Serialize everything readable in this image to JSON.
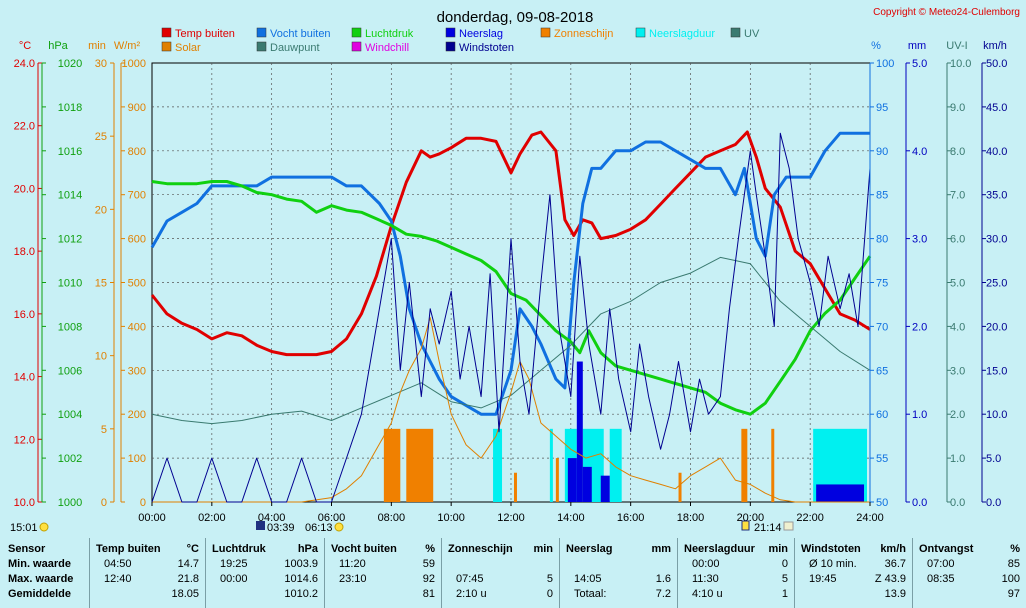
{
  "title": "donderdag, 09-08-2018",
  "copyright": "Copyright © Meteo24-Culemborg",
  "legend": [
    {
      "label": "Temp buiten",
      "color": "#e00000"
    },
    {
      "label": "Solar",
      "color": "#e08000"
    },
    {
      "label": "Vocht buiten",
      "color": "#1070e0"
    },
    {
      "label": "Dauwpunt",
      "color": "#3a7a70"
    },
    {
      "label": "Luchtdruk",
      "color": "#10d010"
    },
    {
      "label": "Windchill",
      "color": "#e000e0"
    },
    {
      "label": "Neerslag",
      "color": "#0000e0"
    },
    {
      "label": "Windstoten",
      "color": "#000090"
    },
    {
      "label": "Zonneschijn",
      "color": "#f08000"
    },
    {
      "label": "Neerslagduur",
      "color": "#00f0f0"
    },
    {
      "label": "UV",
      "color": "#3a7a70"
    }
  ],
  "axes": {
    "temp": {
      "unit": "°C",
      "ticks": [
        "24.0",
        "22.0",
        "20.0",
        "18.0",
        "16.0",
        "14.0",
        "12.0",
        "10.0"
      ],
      "color": "#e00000"
    },
    "press": {
      "unit": "hPa",
      "ticks": [
        "1020",
        "1018",
        "1016",
        "1014",
        "1012",
        "1010",
        "1008",
        "1006",
        "1004",
        "1002",
        "1000"
      ],
      "color": "#10a010"
    },
    "min": {
      "unit": "min",
      "ticks": [
        "30",
        "25",
        "20",
        "15",
        "10",
        "5",
        "0"
      ],
      "color": "#e08000"
    },
    "solar": {
      "unit": "W/m²",
      "ticks": [
        "1000",
        "900",
        "800",
        "700",
        "600",
        "500",
        "400",
        "300",
        "200",
        "100",
        "0"
      ],
      "color": "#e08000"
    },
    "hum": {
      "unit": "%",
      "ticks": [
        "100",
        "95",
        "90",
        "85",
        "80",
        "75",
        "70",
        "65",
        "60",
        "55",
        "50"
      ],
      "color": "#1070e0"
    },
    "rain": {
      "unit": "mm",
      "ticks": [
        "5.0",
        "4.0",
        "3.0",
        "2.0",
        "1.0",
        "0.0"
      ],
      "color": "#0000c0"
    },
    "uv": {
      "unit": "UV-I",
      "ticks": [
        "10.0",
        "9.0",
        "8.0",
        "7.0",
        "6.0",
        "5.0",
        "4.0",
        "3.0",
        "2.0",
        "1.0",
        "0.0"
      ],
      "color": "#3a7a70"
    },
    "wind": {
      "unit": "km/h",
      "ticks": [
        "50.0",
        "45.0",
        "40.0",
        "35.0",
        "30.0",
        "25.0",
        "20.0",
        "15.0",
        "10.0",
        "5.0",
        "0.0"
      ],
      "color": "#000090"
    }
  },
  "x_ticks": [
    "00:00",
    "02:00",
    "04:00",
    "06:00",
    "08:00",
    "10:00",
    "12:00",
    "14:00",
    "16:00",
    "18:00",
    "20:00",
    "22:00",
    "24:00"
  ],
  "markers": {
    "left_time": "15:01",
    "sunrise": "03:39",
    "sunrise2": "06:13",
    "sunset": "21:14"
  },
  "chart_data": {
    "type": "line",
    "title": "donderdag, 09-08-2018",
    "x_unit": "hours",
    "xlim": [
      0,
      24
    ],
    "series": [
      {
        "name": "Temp buiten",
        "axis": "temp",
        "ylim": [
          10,
          24
        ],
        "x": [
          0,
          0.5,
          1,
          1.5,
          2,
          2.5,
          3,
          3.5,
          4,
          4.5,
          5,
          5.5,
          6,
          6.5,
          7,
          7.5,
          8,
          8.5,
          9,
          9.3,
          9.6,
          10,
          10.5,
          11,
          11.5,
          12,
          12.3,
          12.7,
          13,
          13.5,
          13.8,
          14.1,
          14.4,
          14.7,
          15,
          15.5,
          16,
          16.5,
          17,
          17.5,
          18,
          18.5,
          19,
          19.5,
          19.9,
          20.2,
          20.5,
          21,
          21.5,
          22,
          22.5,
          23,
          23.5,
          24
        ],
        "y": [
          16.6,
          16.0,
          15.7,
          15.5,
          15.2,
          15.4,
          15.3,
          15.0,
          14.8,
          14.7,
          14.7,
          14.7,
          14.8,
          15.2,
          16.0,
          17.2,
          18.8,
          20.2,
          21.2,
          21.0,
          21.1,
          21.3,
          21.6,
          21.6,
          21.5,
          20.5,
          21.1,
          21.7,
          21.8,
          21.2,
          19.0,
          18.5,
          19.0,
          18.9,
          18.4,
          18.5,
          18.7,
          19.0,
          19.5,
          20.0,
          20.5,
          21.0,
          21.2,
          21.4,
          21.8,
          21.0,
          20.0,
          19.4,
          18.0,
          17.6,
          16.8,
          16.0,
          15.8,
          15.5
        ]
      },
      {
        "name": "Vocht buiten",
        "axis": "hum",
        "ylim": [
          50,
          100
        ],
        "x": [
          0,
          0.5,
          1,
          1.5,
          2,
          2.5,
          3,
          3.5,
          4,
          4.5,
          5,
          5.5,
          6,
          6.5,
          7,
          7.3,
          7.6,
          8,
          8.3,
          8.6,
          9,
          9.3,
          9.6,
          10,
          10.5,
          11,
          11.5,
          12,
          12.3,
          12.7,
          13,
          13.5,
          13.8,
          14.1,
          14.4,
          14.7,
          15,
          15.5,
          16,
          16.5,
          17,
          17.5,
          18,
          18.5,
          19,
          19.5,
          19.8,
          20.2,
          20.5,
          20.8,
          21.2,
          21.5,
          22,
          22.5,
          23,
          23.5,
          24
        ],
        "y": [
          79,
          82,
          83,
          84,
          86,
          86,
          86,
          86,
          87,
          87,
          87,
          87,
          87,
          86,
          86,
          85,
          84,
          82,
          78,
          72,
          68,
          66,
          64,
          62,
          61,
          60,
          60,
          65,
          72,
          70,
          68,
          64,
          63,
          75,
          84,
          88,
          88,
          90,
          90,
          91,
          91,
          90,
          89,
          88,
          88,
          85,
          88,
          80,
          78,
          85,
          87,
          87,
          87,
          90,
          92,
          92,
          92
        ]
      },
      {
        "name": "Luchtdruk",
        "axis": "press",
        "ylim": [
          1000,
          1020
        ],
        "x": [
          0,
          0.5,
          1,
          1.5,
          2,
          2.5,
          3,
          3.5,
          4,
          4.5,
          5,
          5.5,
          6,
          6.5,
          7,
          7.5,
          8,
          8.5,
          9,
          9.5,
          10,
          10.5,
          11,
          11.5,
          12,
          12.5,
          13,
          13.5,
          14,
          14.3,
          14.6,
          15,
          15.5,
          16,
          16.5,
          17,
          17.5,
          18,
          18.5,
          19,
          19.5,
          20,
          20.5,
          21,
          21.5,
          22,
          22.5,
          23,
          23.5,
          24
        ],
        "y": [
          1014.6,
          1014.5,
          1014.5,
          1014.5,
          1014.6,
          1014.6,
          1014.4,
          1014.1,
          1014.0,
          1013.8,
          1013.7,
          1013.2,
          1013.5,
          1013.3,
          1013.2,
          1012.9,
          1012.6,
          1012.2,
          1012.1,
          1011.9,
          1011.6,
          1011.3,
          1011.0,
          1010.5,
          1009.5,
          1009.2,
          1008.5,
          1007.8,
          1007.3,
          1006.8,
          1007.8,
          1006.8,
          1006.2,
          1006.0,
          1005.8,
          1005.6,
          1005.4,
          1005.2,
          1005.0,
          1004.5,
          1004.2,
          1004.0,
          1004.5,
          1005.5,
          1006.5,
          1007.8,
          1008.6,
          1009.2,
          1010.2,
          1011.2
        ]
      },
      {
        "name": "Dauwpunt",
        "axis": "temp",
        "ylim": [
          10,
          24
        ],
        "x": [
          0,
          1,
          2,
          3,
          4,
          5,
          6,
          7,
          8,
          9,
          10,
          11,
          12,
          13,
          14,
          15,
          16,
          17,
          18,
          19,
          20,
          21,
          22,
          23,
          24
        ],
        "y": [
          12.8,
          12.6,
          12.5,
          12.6,
          12.8,
          12.9,
          12.6,
          13.0,
          13.4,
          13.8,
          13.2,
          13.0,
          13.4,
          14.2,
          15.0,
          16.0,
          16.4,
          17.0,
          17.3,
          17.8,
          17.6,
          16.4,
          15.6,
          14.8,
          14.2
        ]
      },
      {
        "name": "Solar",
        "axis": "solar",
        "ylim": [
          0,
          1000
        ],
        "x": [
          0,
          3.5,
          5,
          6,
          6.5,
          7,
          7.5,
          8,
          8.3,
          8.6,
          9,
          9.3,
          9.6,
          10,
          10.5,
          11,
          11.5,
          12,
          12.3,
          12.6,
          13,
          13.5,
          14,
          14.5,
          15,
          15.5,
          16,
          16.5,
          17,
          17.5,
          18,
          18.5,
          19,
          19.5,
          20,
          20.5,
          21,
          21.5,
          24
        ],
        "y": [
          0,
          0,
          0,
          10,
          30,
          60,
          120,
          180,
          250,
          300,
          350,
          420,
          320,
          200,
          130,
          100,
          150,
          250,
          320,
          280,
          180,
          150,
          120,
          100,
          110,
          80,
          60,
          50,
          40,
          30,
          60,
          80,
          100,
          50,
          40,
          20,
          5,
          0,
          0
        ]
      },
      {
        "name": "Windstoten",
        "axis": "wind",
        "ylim": [
          0,
          50
        ],
        "x": [
          0,
          0.5,
          1,
          1.5,
          2,
          2.5,
          3,
          3.5,
          4,
          4.5,
          5,
          5.5,
          6,
          6.5,
          7,
          7.5,
          8,
          8.3,
          8.6,
          9,
          9.3,
          9.6,
          10,
          10.3,
          10.6,
          11,
          11.3,
          11.6,
          12,
          12.3,
          12.6,
          13,
          13.3,
          13.6,
          14,
          14.3,
          14.6,
          15,
          15.3,
          15.6,
          16,
          16.3,
          16.6,
          17,
          17.3,
          17.6,
          18,
          18.3,
          18.6,
          19,
          19.3,
          19.6,
          20,
          20.2,
          20.5,
          20.8,
          21,
          21.3,
          21.6,
          22,
          22.3,
          22.6,
          23,
          23.3,
          23.6,
          24
        ],
        "y": [
          0,
          5,
          0,
          0,
          5,
          0,
          0,
          5,
          0,
          0,
          5,
          0,
          0,
          5,
          10,
          20,
          30,
          15,
          25,
          12,
          22,
          18,
          24,
          14,
          20,
          12,
          26,
          8,
          30,
          16,
          10,
          25,
          35,
          20,
          12,
          28,
          18,
          10,
          22,
          14,
          8,
          18,
          12,
          6,
          10,
          16,
          8,
          14,
          10,
          12,
          22,
          30,
          40,
          35,
          28,
          20,
          42,
          38,
          30,
          25,
          20,
          28,
          22,
          26,
          20,
          38
        ]
      },
      {
        "name": "Zonneschijn",
        "axis": "min",
        "ylim": [
          0,
          30
        ],
        "bars": [
          [
            7.75,
            8.3,
            5
          ],
          [
            8.5,
            9.4,
            5
          ],
          [
            12.1,
            12.2,
            2
          ],
          [
            13.5,
            13.6,
            3
          ],
          [
            14.4,
            14.5,
            3
          ],
          [
            17.6,
            17.7,
            2
          ],
          [
            19.7,
            19.9,
            5
          ],
          [
            20.7,
            20.8,
            5
          ]
        ]
      },
      {
        "name": "Neerslagduur",
        "axis": "min",
        "ylim": [
          0,
          30
        ],
        "bars": [
          [
            11.4,
            11.7,
            5
          ],
          [
            13.3,
            13.4,
            5
          ],
          [
            13.8,
            14.2,
            5
          ],
          [
            14.4,
            15.1,
            5
          ],
          [
            15.3,
            15.7,
            5
          ],
          [
            22.1,
            23.9,
            5
          ]
        ]
      },
      {
        "name": "Neerslag",
        "axis": "rain",
        "ylim": [
          0,
          5
        ],
        "bars": [
          [
            13.9,
            14.2,
            0.5
          ],
          [
            14.2,
            14.4,
            1.6
          ],
          [
            14.4,
            14.7,
            0.4
          ],
          [
            15.0,
            15.3,
            0.3
          ],
          [
            22.2,
            23.8,
            0.2
          ]
        ]
      }
    ]
  },
  "summary": {
    "sensor": {
      "header": "Sensor",
      "rows": [
        "Min. waarde",
        "Max. waarde",
        "Gemiddelde"
      ]
    },
    "temp": {
      "header": "Temp buiten",
      "unit": "°C",
      "times": [
        "04:50",
        "12:40",
        ""
      ],
      "values": [
        "14.7",
        "21.8",
        "18.05"
      ]
    },
    "press": {
      "header": "Luchtdruk",
      "unit": "hPa",
      "times": [
        "19:25",
        "00:00",
        ""
      ],
      "values": [
        "1003.9",
        "1014.6",
        "1010.2"
      ]
    },
    "hum": {
      "header": "Vocht buiten",
      "unit": "%",
      "times": [
        "11:20",
        "23:10",
        ""
      ],
      "values": [
        "59",
        "92",
        "81"
      ]
    },
    "sun": {
      "header": "Zonneschijn",
      "unit": "min",
      "times": [
        "",
        "07:45",
        "2:10 u"
      ],
      "values": [
        "",
        "5",
        "0"
      ]
    },
    "rain": {
      "header": "Neerslag",
      "unit": "mm",
      "times": [
        "",
        "14:05",
        "Totaal:"
      ],
      "values": [
        "",
        "1.6",
        "7.2"
      ]
    },
    "raindur": {
      "header": "Neerslagduur",
      "unit": "min",
      "times": [
        "00:00",
        "11:30",
        "4:10 u"
      ],
      "values": [
        "0",
        "5",
        "1"
      ]
    },
    "wind": {
      "header": "Windstoten",
      "unit": "km/h",
      "times": [
        "Ø 10 min.",
        "19:45",
        ""
      ],
      "values": [
        "36.7",
        "Z 43.9",
        "13.9"
      ]
    },
    "ont": {
      "header": "Ontvangst",
      "unit": "%",
      "times": [
        "07:00",
        "08:35",
        ""
      ],
      "values": [
        "85",
        "100",
        "97"
      ]
    }
  }
}
